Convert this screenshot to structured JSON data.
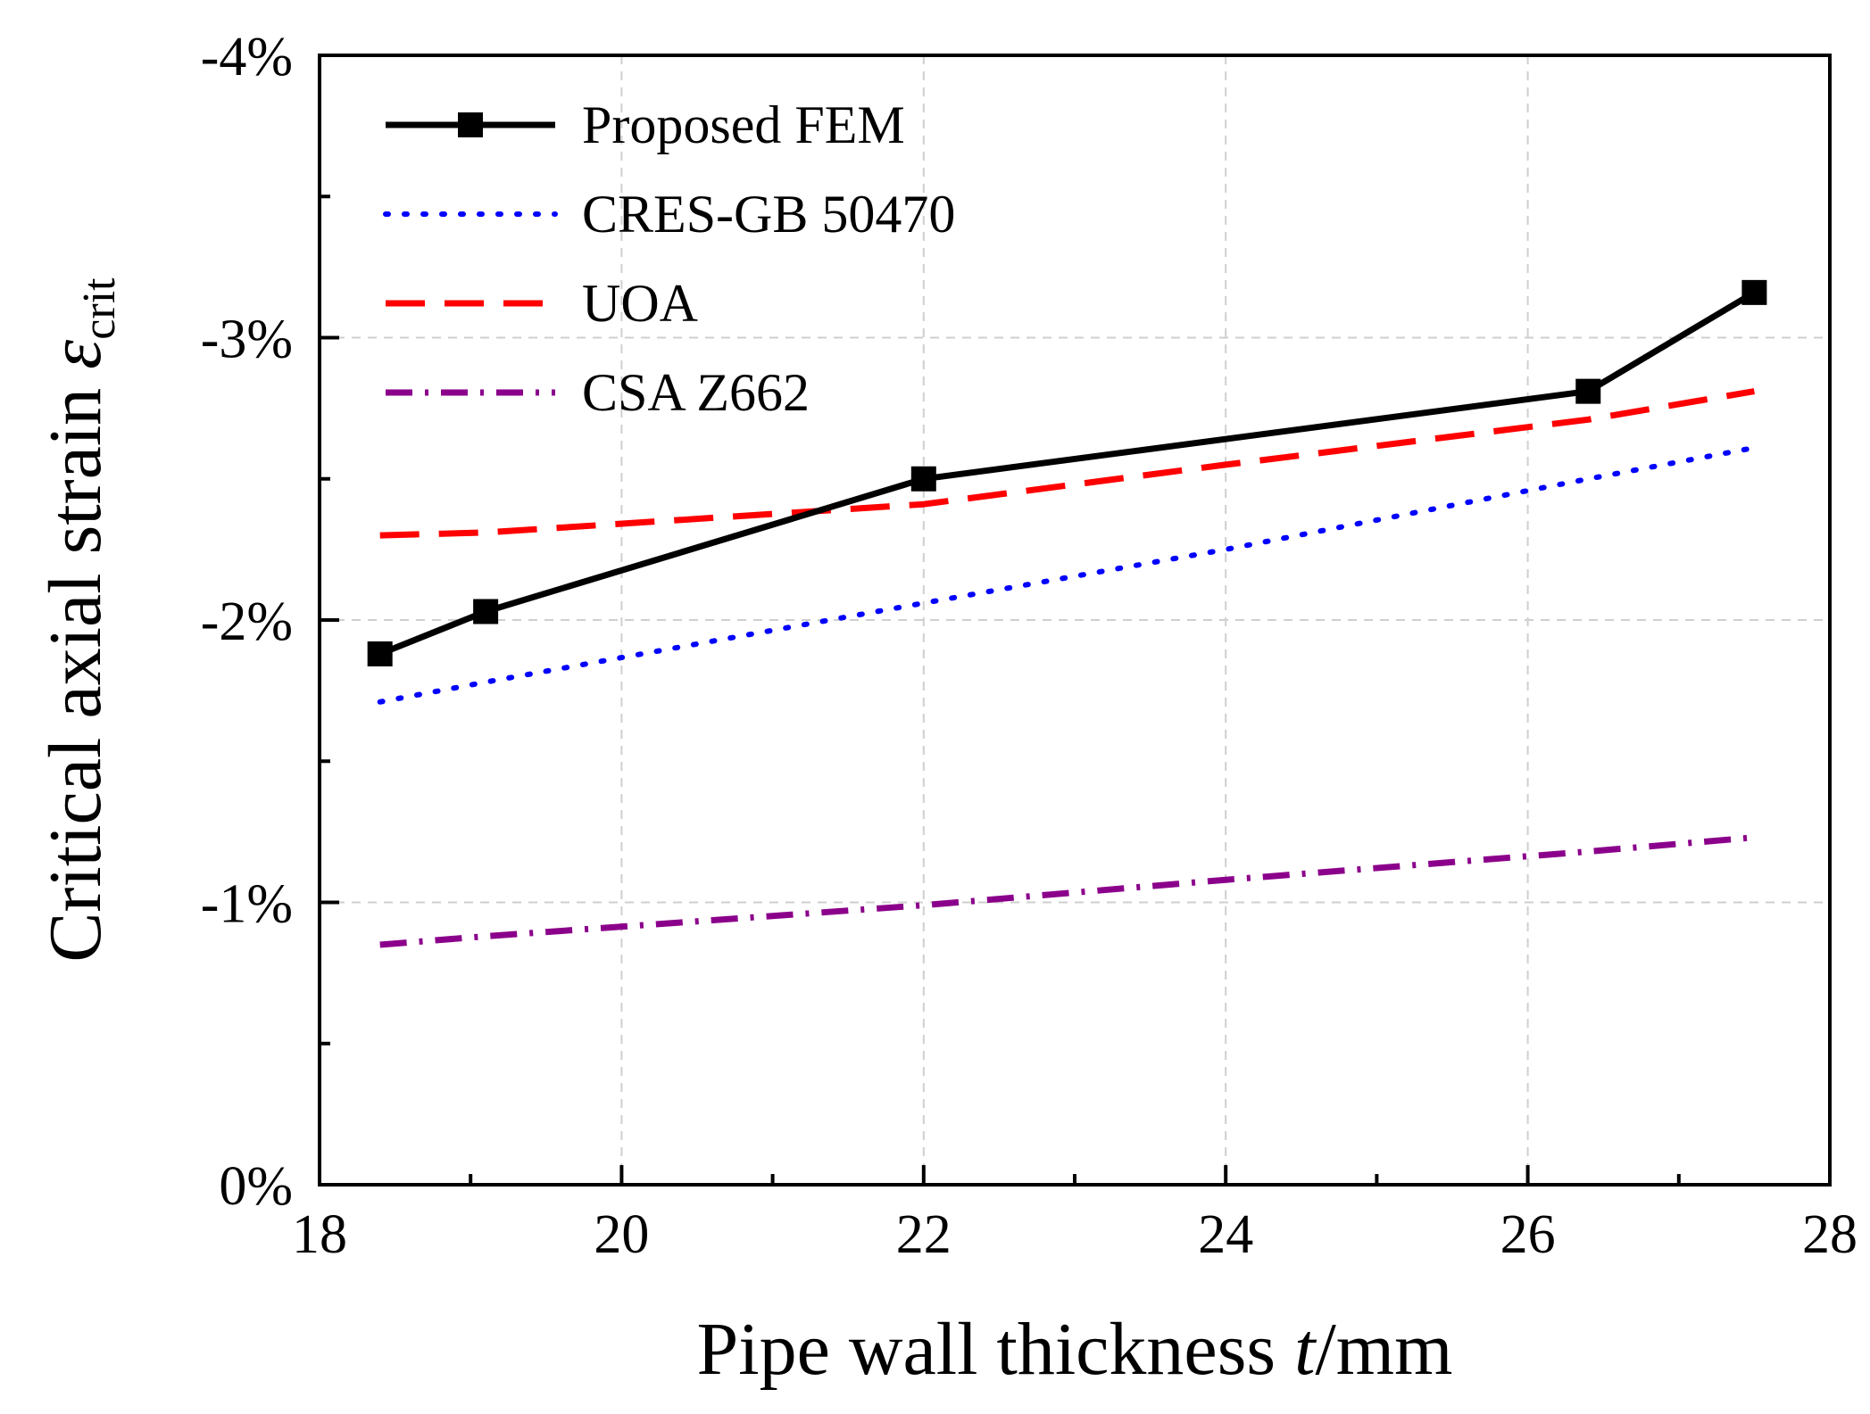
{
  "chart_data": {
    "type": "line",
    "xlabel": "Pipe wall thickness ",
    "xlabel_italic": "t",
    "xlabel_unit": "/mm",
    "ylabel": "Critical axial strain ",
    "ylabel_symbol": "ε",
    "ylabel_sub": "crit",
    "xlim": [
      18,
      28
    ],
    "ylim": [
      0,
      -4
    ],
    "x_ticks": [
      18,
      20,
      22,
      24,
      26,
      28
    ],
    "x_tick_labels": [
      "18",
      "20",
      "22",
      "24",
      "26",
      "28"
    ],
    "y_ticks": [
      0,
      -1,
      -2,
      -3,
      -4
    ],
    "y_tick_labels": [
      "0%",
      "-1%",
      "-2%",
      "-3%",
      "-4%"
    ],
    "grid": true,
    "legend_position": "top-left",
    "series": [
      {
        "name": "Proposed FEM",
        "color": "#000000",
        "style": "solid-square-markers",
        "x": [
          18.4,
          19.1,
          22.0,
          26.4,
          27.5
        ],
        "y": [
          -1.88,
          -2.03,
          -2.5,
          -2.81,
          -3.16
        ]
      },
      {
        "name": "CRES-GB 50470",
        "color": "#0000ff",
        "style": "dotted",
        "x": [
          18.4,
          19.1,
          22.0,
          24.0,
          26.4,
          27.5
        ],
        "y": [
          -1.71,
          -1.78,
          -2.06,
          -2.25,
          -2.5,
          -2.61
        ]
      },
      {
        "name": "UOA",
        "color": "#ff0000",
        "style": "dashed",
        "x": [
          18.4,
          19.1,
          22.0,
          24.0,
          26.4,
          27.5
        ],
        "y": [
          -2.3,
          -2.31,
          -2.41,
          -2.55,
          -2.71,
          -2.81
        ]
      },
      {
        "name": "CSA Z662",
        "color": "#8b008b",
        "style": "dash-dot",
        "x": [
          18.4,
          19.1,
          22.0,
          24.0,
          26.4,
          27.5
        ],
        "y": [
          -0.85,
          -0.88,
          -0.99,
          -1.08,
          -1.18,
          -1.23
        ]
      }
    ]
  }
}
